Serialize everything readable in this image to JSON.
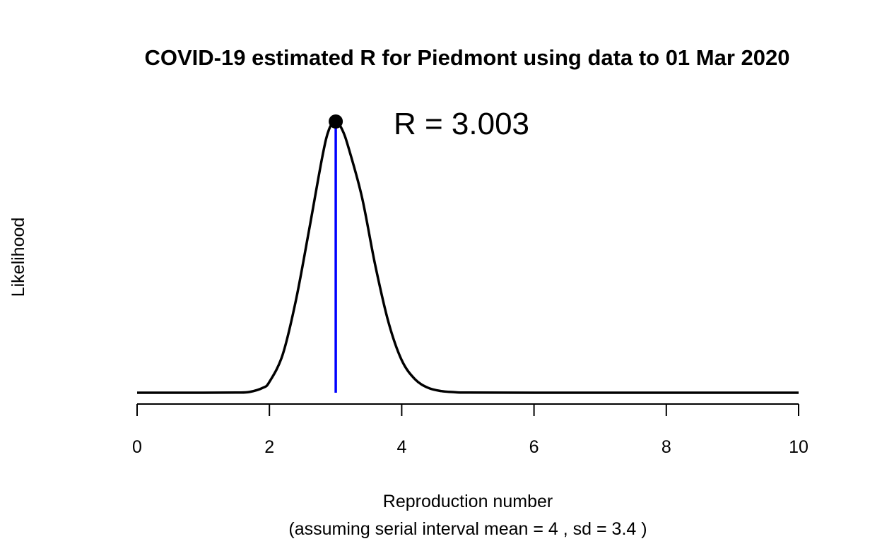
{
  "chart_data": {
    "type": "line",
    "title": "COVID-19 estimated R for Piedmont using data to 01 Mar 2020",
    "xlabel": "Reproduction number",
    "xlabel_sub": "(assuming serial interval mean = 4 , sd = 3.4 )",
    "ylabel": "Likelihood",
    "xlim": [
      0,
      10
    ],
    "ylim": [
      0,
      1
    ],
    "x_ticks": [
      0,
      2,
      4,
      6,
      8,
      10
    ],
    "x_tick_labels": [
      "0",
      "2",
      "4",
      "6",
      "8",
      "10"
    ],
    "grid": false,
    "y_axis_drawn": false,
    "series": [
      {
        "x": [
          0,
          1.0,
          1.5,
          1.7,
          1.9,
          2.0,
          2.2,
          2.4,
          2.6,
          2.8,
          2.9,
          3.0,
          3.1,
          3.2,
          3.4,
          3.6,
          3.8,
          4.0,
          4.2,
          4.4,
          4.6,
          4.8,
          5.0,
          6.0,
          8.0,
          10.0
        ],
        "y": [
          0,
          0,
          0.0005,
          0.003,
          0.018,
          0.04,
          0.14,
          0.34,
          0.6,
          0.87,
          0.97,
          1.0,
          0.97,
          0.9,
          0.72,
          0.47,
          0.26,
          0.12,
          0.05,
          0.018,
          0.006,
          0.002,
          0.0005,
          0,
          0,
          0
        ],
        "color": "#000000"
      }
    ],
    "estimate": {
      "x": 3.003,
      "y": 1.0,
      "label": "R = 3.003",
      "line_color": "#0000ff",
      "marker_color": "#000000"
    }
  }
}
